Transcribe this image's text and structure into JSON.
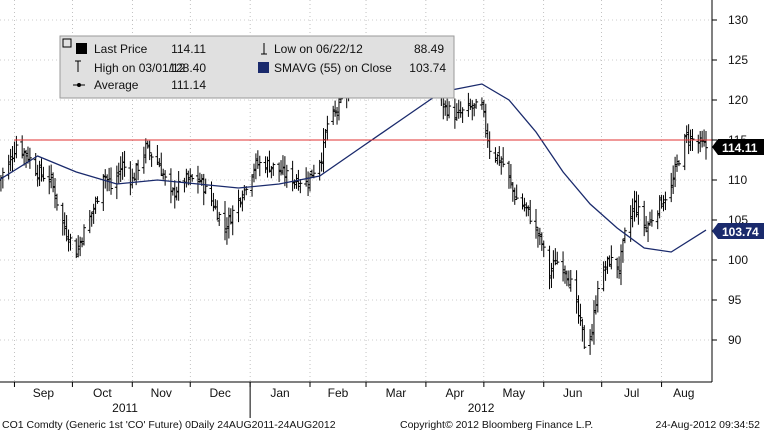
{
  "chart_data": {
    "type": "bar",
    "subtype": "ohlc",
    "title": "",
    "ticker_footer": "CO1 Comdty (Generic 1st 'CO' Future) 0Daily 24AUG2011-24AUG2012",
    "copyright": "Copyright© 2012 Bloomberg Finance L.P.",
    "timestamp": "24-Aug-2012 09:34:52",
    "y_axis_side": "right",
    "ylim": [
      85,
      132
    ],
    "yticks": [
      90,
      95,
      100,
      105,
      110,
      115,
      120,
      125,
      130
    ],
    "month_labels": [
      "Sep",
      "Oct",
      "Nov",
      "Dec",
      "Jan",
      "Feb",
      "Mar",
      "Apr",
      "May",
      "Jun",
      "Jul",
      "Aug"
    ],
    "year_labels": [
      "2011",
      "2012"
    ],
    "grid": "dotted",
    "legend": {
      "placement": "top-left",
      "items": [
        {
          "label": "Last Price",
          "value": "114.11",
          "icon": "filled-square-icon"
        },
        {
          "label": "High on 03/01/12",
          "value": "128.40",
          "icon": "high-marker-icon"
        },
        {
          "label": "Average",
          "value": "111.14",
          "icon": "average-line-icon"
        },
        {
          "label": "Low on 06/22/12",
          "value": "88.49",
          "icon": "low-marker-icon"
        },
        {
          "label": "SMAVG (55) on Close",
          "value": "103.74",
          "icon": "navy-square-icon"
        }
      ]
    },
    "last_price_tag": "114.11",
    "sma_tag": "103.74",
    "average_value": 111.14,
    "price_anchors": [
      {
        "date": "2011-08-24",
        "close": 110
      },
      {
        "date": "2011-08-29",
        "close": 112
      },
      {
        "date": "2011-09-02",
        "close": 114.5
      },
      {
        "date": "2011-09-08",
        "close": 113
      },
      {
        "date": "2011-09-13",
        "close": 111
      },
      {
        "date": "2011-09-20",
        "close": 110
      },
      {
        "date": "2011-09-26",
        "close": 104.5
      },
      {
        "date": "2011-10-03",
        "close": 101
      },
      {
        "date": "2011-10-06",
        "close": 103
      },
      {
        "date": "2011-10-13",
        "close": 107
      },
      {
        "date": "2011-10-17",
        "close": 111
      },
      {
        "date": "2011-10-21",
        "close": 109
      },
      {
        "date": "2011-10-27",
        "close": 112
      },
      {
        "date": "2011-11-01",
        "close": 110
      },
      {
        "date": "2011-11-08",
        "close": 114
      },
      {
        "date": "2011-11-15",
        "close": 112
      },
      {
        "date": "2011-11-21",
        "close": 108
      },
      {
        "date": "2011-11-28",
        "close": 110
      },
      {
        "date": "2011-12-06",
        "close": 110
      },
      {
        "date": "2011-12-13",
        "close": 107
      },
      {
        "date": "2011-12-19",
        "close": 104
      },
      {
        "date": "2011-12-27",
        "close": 108
      },
      {
        "date": "2012-01-04",
        "close": 112
      },
      {
        "date": "2012-01-10",
        "close": 112
      },
      {
        "date": "2012-01-17",
        "close": 111
      },
      {
        "date": "2012-01-24",
        "close": 110
      },
      {
        "date": "2012-01-31",
        "close": 110
      },
      {
        "date": "2012-02-07",
        "close": 113
      },
      {
        "date": "2012-02-10",
        "close": 117
      },
      {
        "date": "2012-02-16",
        "close": 119
      },
      {
        "date": "2012-02-24",
        "close": 124
      },
      {
        "date": "2012-03-01",
        "close": 125
      },
      {
        "date": "2012-03-08",
        "close": 124.5
      },
      {
        "date": "2012-03-15",
        "close": 125
      },
      {
        "date": "2012-03-22",
        "close": 124
      },
      {
        "date": "2012-03-29",
        "close": 123
      },
      {
        "date": "2012-04-05",
        "close": 122
      },
      {
        "date": "2012-04-11",
        "close": 119
      },
      {
        "date": "2012-04-17",
        "close": 118
      },
      {
        "date": "2012-04-24",
        "close": 119
      },
      {
        "date": "2012-04-30",
        "close": 119
      },
      {
        "date": "2012-05-04",
        "close": 114
      },
      {
        "date": "2012-05-11",
        "close": 112
      },
      {
        "date": "2012-05-17",
        "close": 108
      },
      {
        "date": "2012-05-24",
        "close": 106
      },
      {
        "date": "2012-05-31",
        "close": 102
      },
      {
        "date": "2012-06-04",
        "close": 98
      },
      {
        "date": "2012-06-07",
        "close": 100
      },
      {
        "date": "2012-06-12",
        "close": 99
      },
      {
        "date": "2012-06-15",
        "close": 97
      },
      {
        "date": "2012-06-20",
        "close": 92
      },
      {
        "date": "2012-06-22",
        "close": 89.5
      },
      {
        "date": "2012-06-26",
        "close": 91
      },
      {
        "date": "2012-06-29",
        "close": 97
      },
      {
        "date": "2012-07-05",
        "close": 100
      },
      {
        "date": "2012-07-10",
        "close": 99
      },
      {
        "date": "2012-07-13",
        "close": 103
      },
      {
        "date": "2012-07-18",
        "close": 107
      },
      {
        "date": "2012-07-24",
        "close": 104
      },
      {
        "date": "2012-07-31",
        "close": 107
      },
      {
        "date": "2012-08-06",
        "close": 109
      },
      {
        "date": "2012-08-09",
        "close": 112
      },
      {
        "date": "2012-08-14",
        "close": 115.5
      },
      {
        "date": "2012-08-17",
        "close": 115
      },
      {
        "date": "2012-08-21",
        "close": 114.5
      },
      {
        "date": "2012-08-24",
        "close": 114.11
      }
    ],
    "sma_series": [
      {
        "date": "2011-08-24",
        "value": 110
      },
      {
        "date": "2011-09-13",
        "value": 113
      },
      {
        "date": "2011-10-03",
        "value": 111
      },
      {
        "date": "2011-10-24",
        "value": 109.5
      },
      {
        "date": "2011-11-14",
        "value": 110
      },
      {
        "date": "2011-12-05",
        "value": 109.5
      },
      {
        "date": "2011-12-26",
        "value": 109
      },
      {
        "date": "2012-01-16",
        "value": 109.5
      },
      {
        "date": "2012-02-06",
        "value": 110.5
      },
      {
        "date": "2012-02-27",
        "value": 114
      },
      {
        "date": "2012-03-19",
        "value": 117.5
      },
      {
        "date": "2012-04-09",
        "value": 121
      },
      {
        "date": "2012-04-30",
        "value": 122
      },
      {
        "date": "2012-05-14",
        "value": 120
      },
      {
        "date": "2012-05-28",
        "value": 116
      },
      {
        "date": "2012-06-11",
        "value": 111
      },
      {
        "date": "2012-06-25",
        "value": 107
      },
      {
        "date": "2012-07-09",
        "value": 104
      },
      {
        "date": "2012-07-23",
        "value": 101.5
      },
      {
        "date": "2012-08-06",
        "value": 101
      },
      {
        "date": "2012-08-24",
        "value": 103.74
      }
    ],
    "colors": {
      "bars": "#000000",
      "sma": "#1a2a6c",
      "last_price_line": "#e03030",
      "last_price_tag_bg": "#000000",
      "sma_tag_bg": "#1a2a6c",
      "legend_bg": "#e0e0e0"
    }
  }
}
